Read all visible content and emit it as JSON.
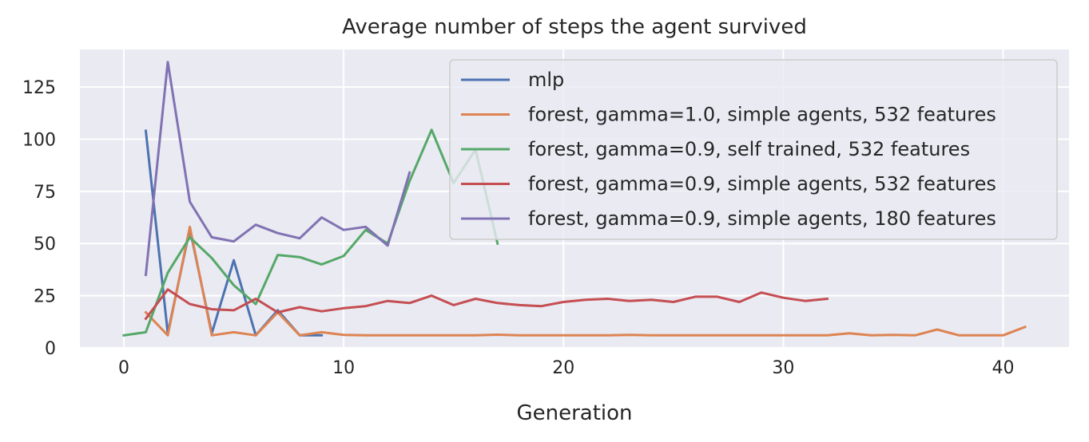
{
  "chart_data": {
    "type": "line",
    "title": "Average number of steps the agent survived",
    "xlabel": "Generation",
    "ylabel": "",
    "xlim": [
      -2,
      43
    ],
    "ylim": [
      0,
      143
    ],
    "xticks": [
      0,
      10,
      20,
      30,
      40
    ],
    "yticks": [
      0,
      25,
      50,
      75,
      100,
      125
    ],
    "grid": true,
    "legend_position": "top-right",
    "series": [
      {
        "name": "mlp",
        "color": "#4c72b0",
        "x": [
          1,
          2,
          3,
          4,
          5,
          6,
          7,
          8,
          9
        ],
        "y": [
          104,
          7,
          57,
          7,
          42,
          6,
          18,
          6,
          6
        ]
      },
      {
        "name": "forest, gamma=1.0, simple agents, 532 features",
        "color": "#dd8452",
        "x": [
          1,
          2,
          3,
          4,
          5,
          6,
          7,
          8,
          9,
          10,
          11,
          12,
          13,
          14,
          15,
          16,
          17,
          18,
          19,
          20,
          21,
          22,
          23,
          24,
          25,
          26,
          27,
          28,
          29,
          30,
          31,
          32,
          33,
          34,
          35,
          36,
          37,
          38,
          39,
          40,
          41
        ],
        "y": [
          17,
          6,
          58,
          6,
          7.5,
          6,
          17,
          6,
          7.5,
          6.2,
          6,
          6,
          6,
          6,
          6,
          6,
          6.3,
          6,
          6,
          6,
          6,
          6,
          6.2,
          6,
          6,
          6,
          6,
          6,
          6,
          6,
          6,
          6,
          7,
          6,
          6.2,
          6,
          8.8,
          6,
          6,
          6,
          10
        ]
      },
      {
        "name": "forest, gamma=0.9, self trained, 532 features",
        "color": "#55a868",
        "x": [
          0,
          1,
          2,
          3,
          4,
          5,
          6,
          7,
          8,
          9,
          10,
          11,
          12,
          13,
          14,
          15,
          16,
          17
        ],
        "y": [
          6,
          7.5,
          36,
          53,
          43,
          30,
          21,
          44.5,
          43.5,
          40,
          44,
          56.5,
          50,
          80,
          104.5,
          79,
          95,
          50
        ]
      },
      {
        "name": "forest, gamma=0.9, simple agents, 532 features",
        "color": "#c44e52",
        "x": [
          1,
          2,
          3,
          4,
          5,
          6,
          7,
          8,
          9,
          10,
          11,
          12,
          13,
          14,
          15,
          16,
          17,
          18,
          19,
          20,
          21,
          22,
          23,
          24,
          25,
          26,
          27,
          28,
          29,
          30,
          31,
          32
        ],
        "y": [
          14,
          28,
          21,
          18.5,
          18,
          23.5,
          17,
          19.5,
          17.5,
          19,
          20,
          22.5,
          21.5,
          25,
          20.5,
          23.5,
          21.5,
          20.5,
          20,
          22,
          23,
          23.5,
          22.5,
          23,
          22,
          24.5,
          24.5,
          22,
          26.5,
          24,
          22.5,
          23.5
        ]
      },
      {
        "name": "forest, gamma=0.9, simple agents, 180 features",
        "color": "#8172b3",
        "x": [
          1,
          2,
          3,
          4,
          5,
          6,
          7,
          8,
          9,
          10,
          11,
          12,
          13
        ],
        "y": [
          35,
          137,
          70,
          53,
          51,
          59,
          55,
          52.5,
          62.5,
          56.5,
          58,
          49,
          84
        ]
      }
    ]
  }
}
